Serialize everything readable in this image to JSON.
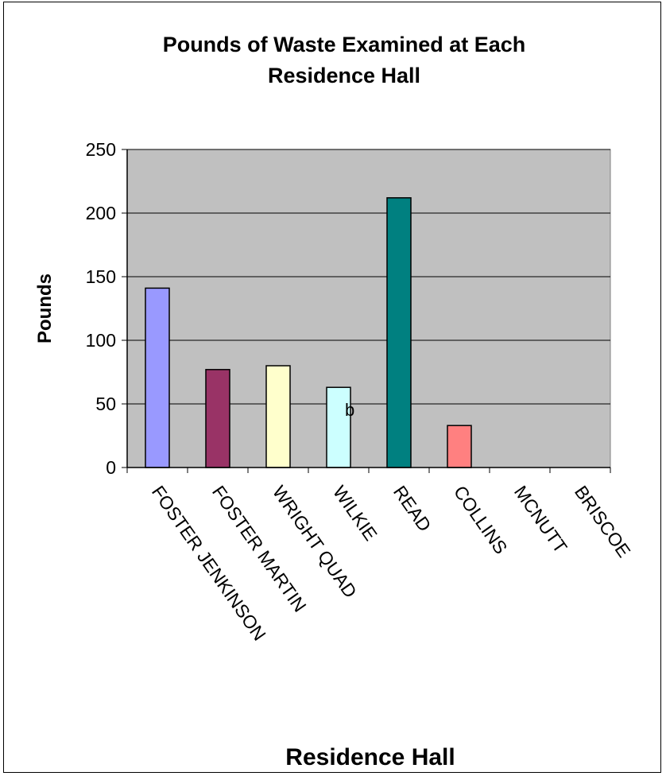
{
  "chart_data": {
    "type": "bar",
    "title_lines": [
      "Pounds of Waste Examined at Each",
      "Residence Hall"
    ],
    "xlabel": "Residence Hall",
    "ylabel": "Pounds",
    "categories": [
      "FOSTER JENKINSON",
      "FOSTER MARTIN",
      "WRIGHT QUAD",
      "WILKIE",
      "READ",
      "COLLINS",
      "MCNUTT",
      "BRISCOE"
    ],
    "values": [
      141,
      77,
      80,
      63,
      212,
      33,
      0,
      0
    ],
    "colors": [
      "#9999ff",
      "#993366",
      "#ffffcc",
      "#ccffff",
      "#008080",
      "#ff8080",
      "#0000ff",
      "#ff00ff"
    ],
    "ylim": [
      0,
      250
    ],
    "yticks": [
      0,
      50,
      100,
      150,
      200,
      250
    ],
    "grid": true,
    "plot_background": "#c0c0c0",
    "annotation": "b",
    "legend": "none"
  }
}
